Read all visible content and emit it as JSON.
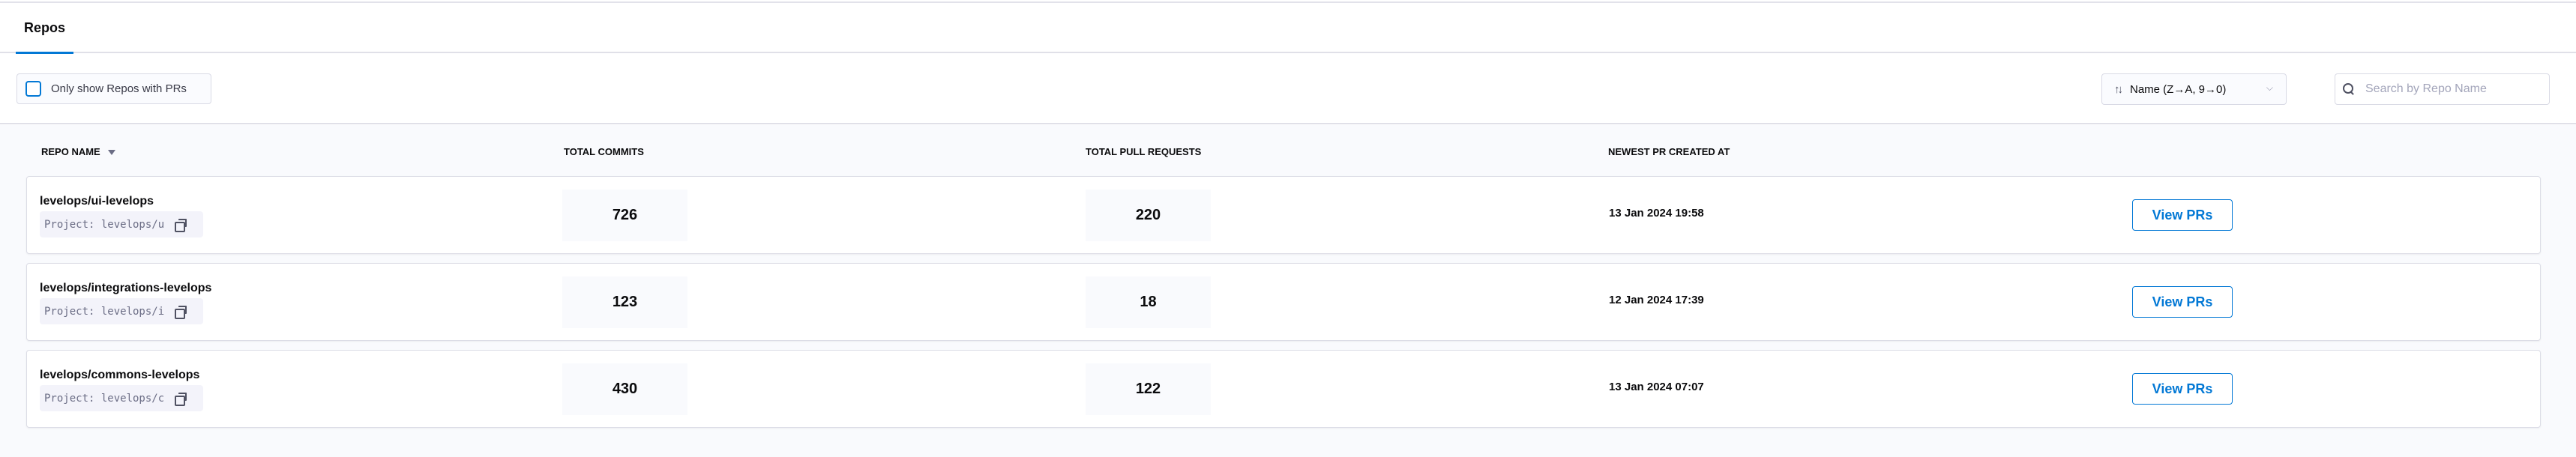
{
  "tabs": [
    {
      "label": "Repos",
      "active": true
    }
  ],
  "toolbar": {
    "filter_label": "Only show Repos with PRs",
    "filter_checked": false,
    "sort_label": "Name (Z→A, 9→0)",
    "sort_icon": "↑↓",
    "search_placeholder": "Search by Repo Name",
    "search_value": ""
  },
  "table": {
    "headers": [
      "REPO NAME",
      "TOTAL COMMITS",
      "TOTAL PULL REQUESTS",
      "NEWEST PR CREATED AT"
    ],
    "rows": [
      {
        "name": "levelops/ui-levelops",
        "project": "Project: levelops/u",
        "commits": "726",
        "prs": "220",
        "newest": "13 Jan 2024 19:58",
        "action": "View PRs"
      },
      {
        "name": "levelops/integrations-levelops",
        "project": "Project: levelops/i",
        "commits": "123",
        "prs": "18",
        "newest": "12 Jan 2024 17:39",
        "action": "View PRs"
      },
      {
        "name": "levelops/commons-levelops",
        "project": "Project: levelops/c",
        "commits": "430",
        "prs": "122",
        "newest": "13 Jan 2024 07:07",
        "action": "View PRs"
      }
    ]
  },
  "colors": {
    "accent": "#0278d5",
    "background": "#f9fafd"
  }
}
